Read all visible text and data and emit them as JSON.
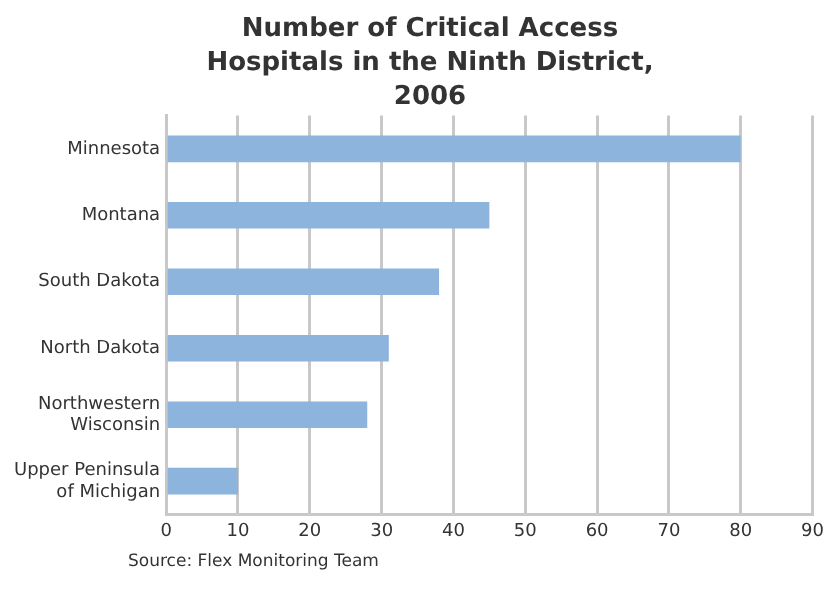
{
  "chart_data": {
    "type": "bar",
    "orientation": "horizontal",
    "title": "Number of Critical Access Hospitals in the Ninth District, 2006",
    "categories": [
      "Minnesota",
      "Montana",
      "South Dakota",
      "North Dakota",
      "Northwestern Wisconsin",
      "Upper Peninsula of Michigan"
    ],
    "values": [
      80,
      45,
      38,
      31,
      28,
      10
    ],
    "color": "#8cb4dc",
    "xlim": [
      0,
      90
    ],
    "xticks": [
      0,
      10,
      20,
      30,
      40,
      50,
      60,
      70,
      80,
      90
    ],
    "grid": "x",
    "annotations": [
      "Source: Flex Monitoring Team"
    ]
  }
}
